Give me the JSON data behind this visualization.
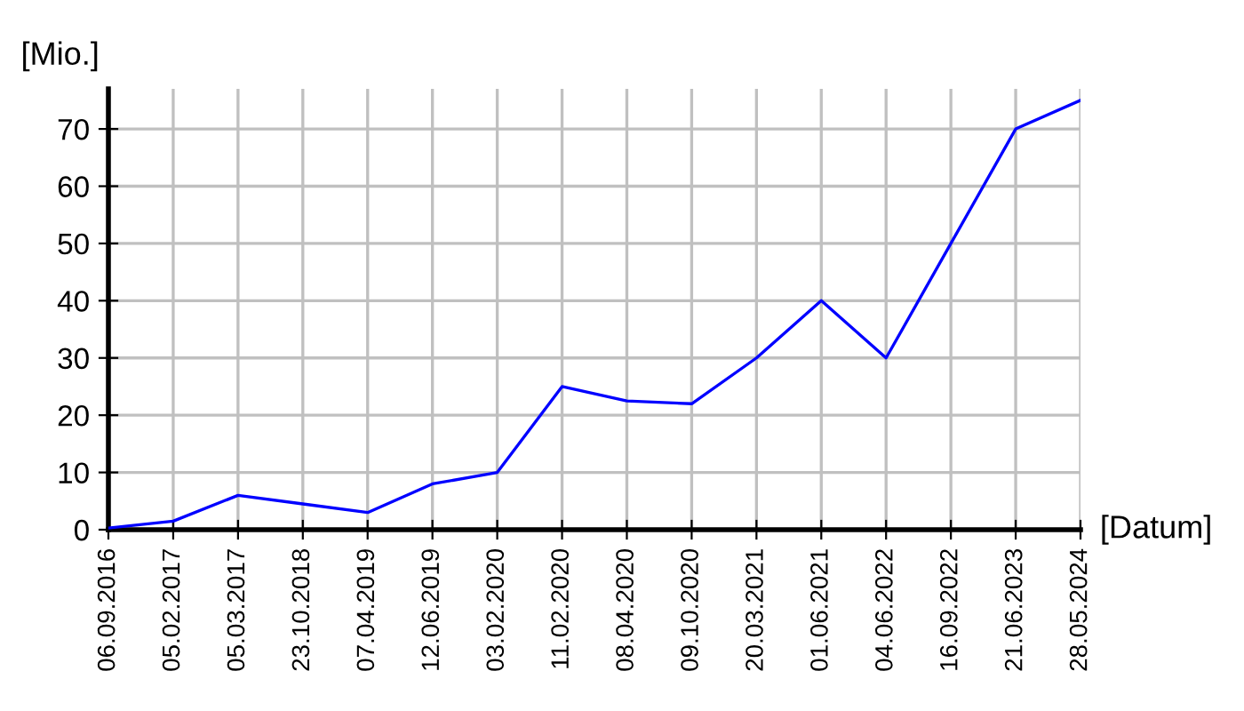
{
  "chart_data": {
    "type": "line",
    "ylabel": "[Mio.]",
    "xlabel": "[Datum]",
    "categories": [
      "06.09.2016",
      "05.02.2017",
      "05.03.2017",
      "23.10.2018",
      "07.04.2019",
      "12.06.2019",
      "03.02.2020",
      "11.02.2020",
      "08.04.2020",
      "09.10.2020",
      "20.03.2021",
      "01.06.2021",
      "04.06.2022",
      "16.09.2022",
      "21.06.2023",
      "28.05.2024"
    ],
    "series": [
      {
        "color": "#0000ff",
        "values": [
          0.3,
          1.5,
          6,
          4.5,
          3,
          8,
          10,
          25,
          22.5,
          22,
          30,
          40,
          30,
          50,
          70,
          75
        ]
      }
    ],
    "ylim": [
      0,
      77
    ],
    "yticks": [
      0,
      10,
      20,
      30,
      40,
      50,
      60,
      70
    ],
    "grid": true,
    "marker": "none",
    "line_style": "solid",
    "legend": false
  }
}
